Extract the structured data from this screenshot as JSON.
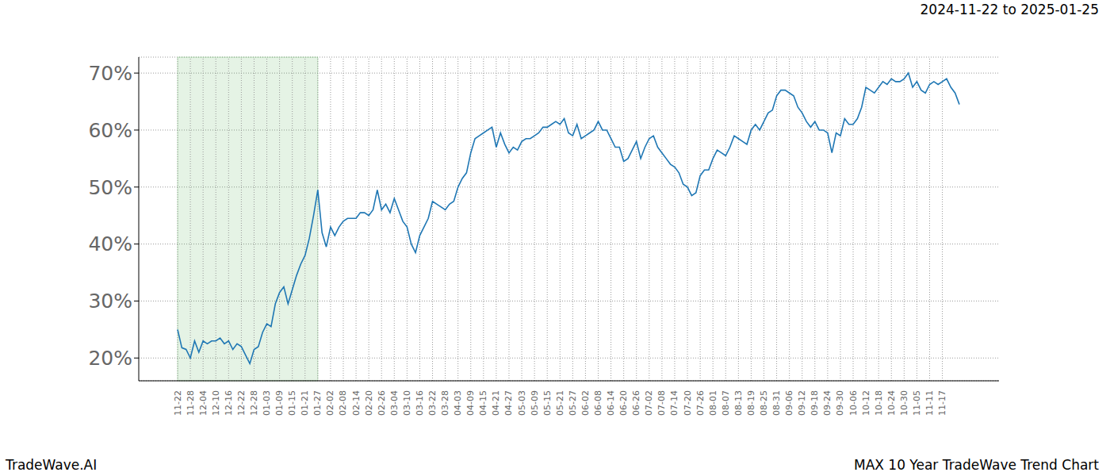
{
  "chart_data": {
    "type": "line",
    "title": "2024-11-22 to 2025-01-25",
    "footer_left": "TradeWave.AI",
    "footer_right": "MAX 10 Year TradeWave Trend Chart",
    "categories": [
      "11-22",
      null,
      null,
      "11-28",
      null,
      null,
      "12-04",
      null,
      null,
      "12-10",
      null,
      null,
      "12-16",
      null,
      null,
      "12-22",
      null,
      null,
      "12-28",
      null,
      null,
      "01-03",
      null,
      null,
      "01-09",
      null,
      null,
      "01-15",
      null,
      null,
      "01-21",
      null,
      null,
      "01-27",
      null,
      null,
      "02-02",
      null,
      null,
      "02-08",
      null,
      null,
      "02-14",
      null,
      null,
      "02-20",
      null,
      null,
      "02-26",
      null,
      null,
      "03-04",
      null,
      null,
      "03-10",
      null,
      null,
      "03-16",
      null,
      null,
      "03-22",
      null,
      null,
      "03-28",
      null,
      null,
      "04-03",
      null,
      null,
      "04-09",
      null,
      null,
      "04-15",
      null,
      null,
      "04-21",
      null,
      null,
      "04-27",
      null,
      null,
      "05-03",
      null,
      null,
      "05-09",
      null,
      null,
      "05-15",
      null,
      null,
      "05-21",
      null,
      null,
      "05-27",
      null,
      null,
      "06-02",
      null,
      null,
      "06-08",
      null,
      null,
      "06-14",
      null,
      null,
      "06-20",
      null,
      null,
      "06-26",
      null,
      null,
      "07-02",
      null,
      null,
      "07-08",
      null,
      null,
      "07-14",
      null,
      null,
      "07-20",
      null,
      null,
      "07-26",
      null,
      null,
      "08-01",
      null,
      null,
      "08-07",
      null,
      null,
      "08-13",
      null,
      null,
      "08-19",
      null,
      null,
      "08-25",
      null,
      null,
      "08-31",
      null,
      null,
      "09-06",
      null,
      null,
      "09-12",
      null,
      null,
      "09-18",
      null,
      null,
      "09-24",
      null,
      null,
      "09-30",
      null,
      null,
      "10-06",
      null,
      null,
      "10-12",
      null,
      null,
      "10-18",
      null,
      null,
      "10-24",
      null,
      null,
      "10-30",
      null,
      null,
      "11-05",
      null,
      null,
      "11-11",
      null,
      null,
      "11-17",
      null,
      null,
      null,
      null
    ],
    "values": [
      25,
      21.8,
      21.5,
      20,
      23,
      21,
      23,
      22.5,
      23,
      23,
      23.5,
      22.5,
      23,
      21.5,
      22.5,
      22,
      20.5,
      19,
      21.5,
      22,
      24.5,
      26,
      25.5,
      29.5,
      31.5,
      32.5,
      29.5,
      32,
      34.5,
      36.5,
      38,
      41,
      45,
      49.5,
      42,
      39.5,
      43,
      41.5,
      43,
      44,
      44.5,
      44.5,
      44.5,
      45.5,
      45.5,
      45,
      46,
      49.5,
      46,
      47,
      45.5,
      48,
      46,
      44,
      43,
      40,
      38.5,
      41.5,
      43,
      44.5,
      47.5,
      47,
      46.5,
      46,
      47,
      47.5,
      50,
      51.5,
      52.5,
      56,
      58.5,
      59,
      59.5,
      60,
      60.5,
      57,
      59.5,
      57.5,
      56,
      57,
      56.5,
      58,
      58.5,
      58.5,
      59,
      59.5,
      60.5,
      60.5,
      61,
      61.5,
      61,
      62,
      59.5,
      59,
      61,
      58.5,
      59,
      59.5,
      60,
      61.5,
      60,
      60,
      58.5,
      57,
      57,
      54.5,
      55,
      56.5,
      58,
      55,
      57,
      58.5,
      59,
      57,
      56,
      55,
      54,
      53.5,
      52.5,
      50.5,
      50,
      48.5,
      49,
      52,
      53,
      53,
      55,
      56.5,
      56,
      55.5,
      57,
      59,
      58.5,
      58,
      57.5,
      60,
      61,
      60,
      61.5,
      63,
      63.5,
      66,
      67,
      67,
      66.5,
      66,
      64,
      63,
      61.5,
      60.5,
      61.5,
      60,
      60,
      59.5,
      56,
      59.5,
      59,
      62,
      61,
      61,
      62,
      64,
      67.5,
      67,
      66.5,
      67.5,
      68.5,
      68,
      69,
      68.5,
      68.5,
      69,
      70,
      67.5,
      68.5,
      67,
      66.5,
      68,
      68.5,
      68,
      68.5,
      69,
      67.5,
      66.5,
      64.5
    ],
    "color": "#1f77b4",
    "ylim": [
      16,
      72.8
    ],
    "yticks": [
      {
        "value": 20,
        "label": "20%"
      },
      {
        "value": 30,
        "label": "30%"
      },
      {
        "value": 40,
        "label": "40%"
      },
      {
        "value": 50,
        "label": "50%"
      },
      {
        "value": 60,
        "label": "60%"
      },
      {
        "value": 70,
        "label": "70%"
      }
    ],
    "grid": true,
    "shaded_range": [
      "11-22",
      "01-27"
    ]
  }
}
